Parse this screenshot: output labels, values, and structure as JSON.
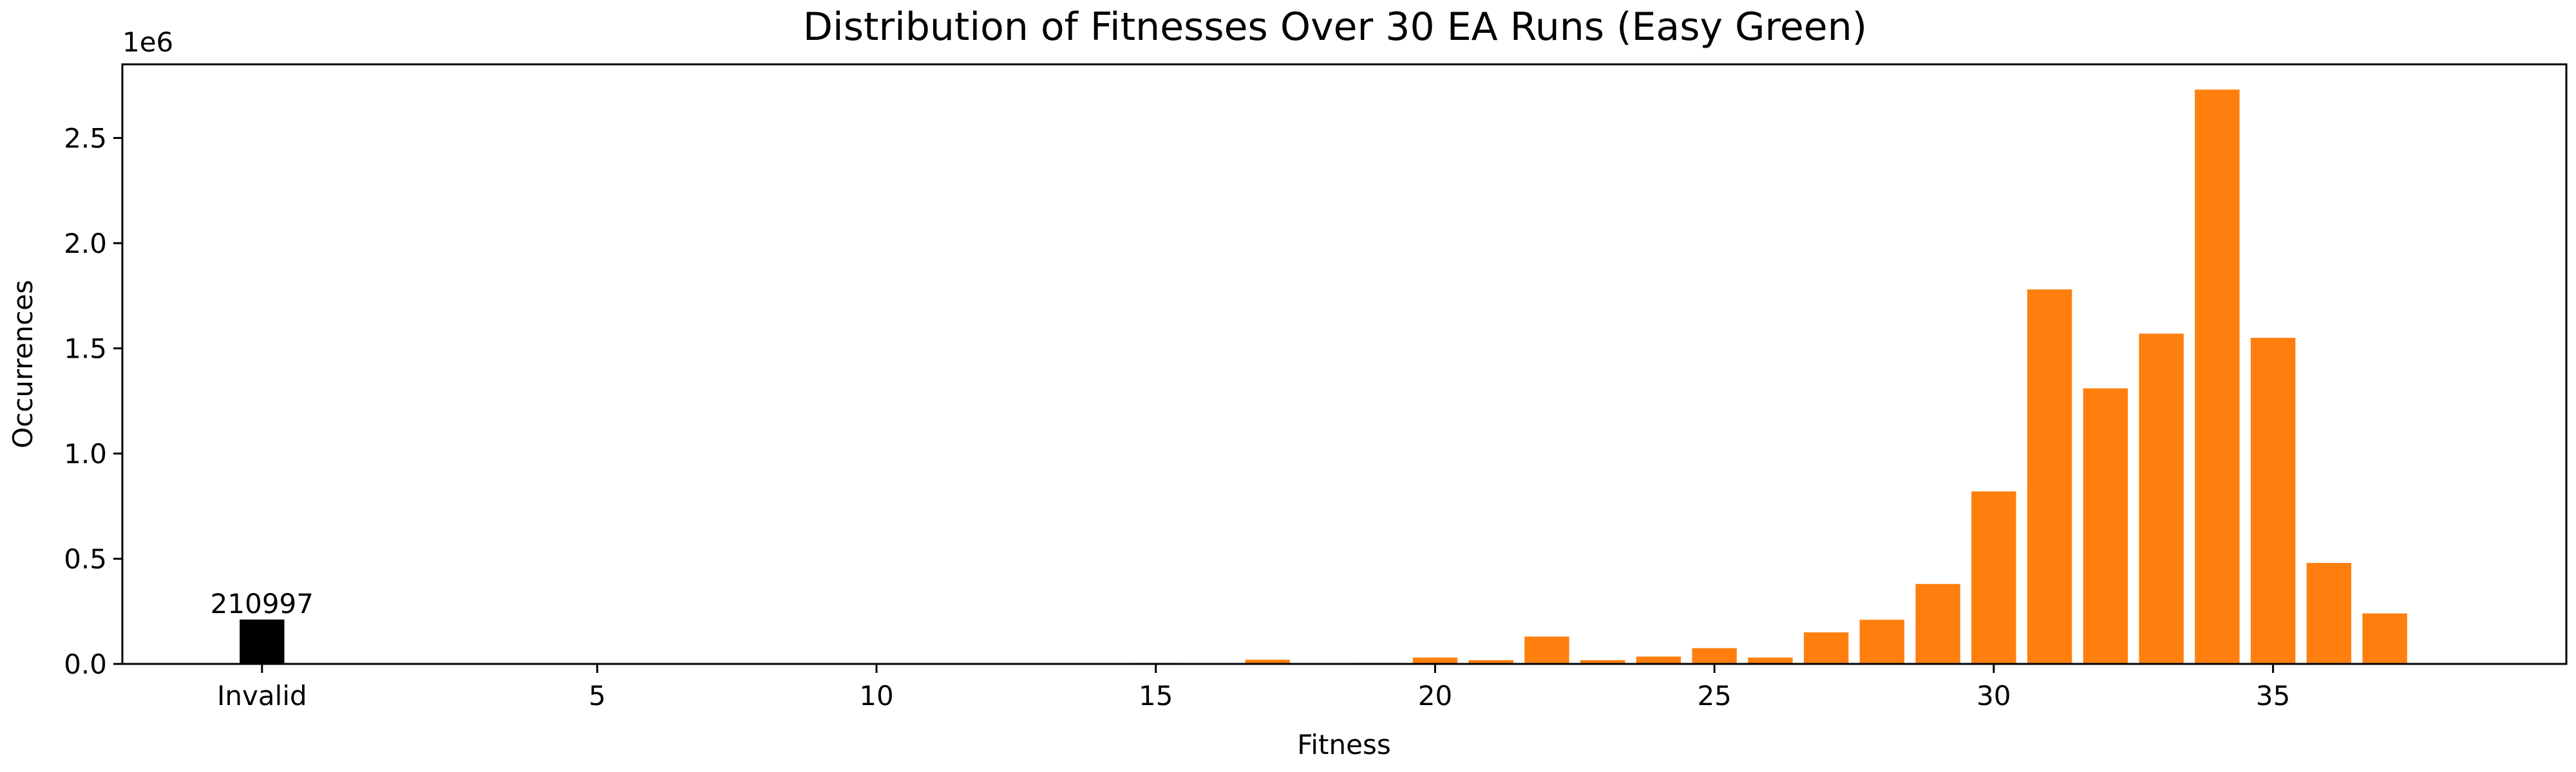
{
  "chart_data": {
    "type": "bar",
    "title": "Distribution of Fitnesses Over 30 EA Runs (Easy Green)",
    "xlabel": "Fitness",
    "ylabel": "Occurrences",
    "y_offset_label": "1e6",
    "ylim": [
      0,
      2850000
    ],
    "xlim": [
      -2.5,
      41.25
    ],
    "y_ticks": [
      0,
      500000,
      1000000,
      1500000,
      2000000,
      2500000
    ],
    "y_tick_labels": [
      "0.0",
      "0.5",
      "1.0",
      "1.5",
      "2.0",
      "2.5"
    ],
    "x_ticks": [
      {
        "x": 0,
        "label": "Invalid"
      },
      {
        "x": 6,
        "label": "5"
      },
      {
        "x": 11,
        "label": "10"
      },
      {
        "x": 16,
        "label": "15"
      },
      {
        "x": 21,
        "label": "20"
      },
      {
        "x": 26,
        "label": "25"
      },
      {
        "x": 31,
        "label": "30"
      },
      {
        "x": 36,
        "label": "35"
      }
    ],
    "grid": false,
    "invalid": {
      "x": 0,
      "value": 210997,
      "label": "210997",
      "color": "#000000"
    },
    "series": [
      {
        "color": "#ff7f0e",
        "x": [
          12,
          16,
          18,
          19,
          20,
          21,
          22,
          23,
          24,
          25,
          26,
          27,
          28,
          29,
          30,
          31,
          32,
          33,
          34,
          35,
          36,
          37,
          38
        ],
        "values": [
          2000,
          5000,
          20000,
          4000,
          5000,
          30000,
          18000,
          130000,
          18000,
          35000,
          75000,
          30000,
          150000,
          210000,
          380000,
          820000,
          1780000,
          1310000,
          1570000,
          2730000,
          1550000,
          480000,
          240000
        ]
      }
    ]
  }
}
